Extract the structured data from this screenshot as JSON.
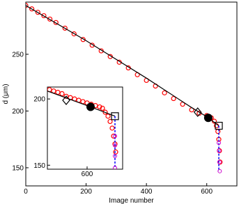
{
  "chart_data": [
    {
      "type": "scatter",
      "xlabel": "Image number",
      "ylabel": "d (μm)",
      "xlim": [
        0,
        700
      ],
      "ylim": [
        134,
        296
      ],
      "xticks": [
        0,
        200,
        400,
        600
      ],
      "yticks": [
        150,
        200,
        250
      ],
      "series": [
        {
          "style": "circle",
          "color": "#ff0000",
          "x": [
            0,
            20,
            40,
            60,
            80,
            100,
            130,
            160,
            190,
            220,
            250,
            280,
            310,
            340,
            370,
            400,
            430,
            460,
            490,
            520,
            550,
            575,
            600,
            615,
            625,
            632,
            637,
            640,
            642,
            644
          ],
          "values": [
            293,
            290,
            287,
            284,
            281,
            278,
            273,
            268,
            263,
            258,
            253,
            248,
            243,
            238,
            232,
            227,
            222,
            216,
            211,
            206,
            201,
            198,
            196,
            194,
            191,
            187,
            182,
            175,
            165,
            155
          ]
        },
        {
          "style": "line",
          "color": "#000000",
          "x": [
            0,
            200,
            400,
            550,
            600,
            640
          ],
          "values": [
            293,
            262,
            229,
            203,
            195,
            187
          ]
        },
        {
          "style": "dashed",
          "color": "#0000ff",
          "x": [
            640,
            640
          ],
          "values": [
            187,
            147
          ]
        },
        {
          "style": "ring",
          "color": "#cc00cc",
          "x": [
            640,
            641,
            642,
            643
          ],
          "values": [
            172,
            165,
            155,
            147
          ]
        },
        {
          "style": "diamond",
          "color": "#000000",
          "x": [
            570
          ],
          "values": [
            199
          ]
        },
        {
          "style": "dot",
          "color": "#000000",
          "x": [
            605
          ],
          "values": [
            194
          ]
        },
        {
          "style": "square",
          "color": "#000000",
          "x": [
            640
          ],
          "values": [
            187
          ]
        }
      ]
    },
    {
      "type": "scatter",
      "xlim": [
        543,
        651
      ],
      "ylim": [
        147,
        209
      ],
      "xticks": [
        600
      ],
      "yticks": [
        150,
        200
      ],
      "series": [
        {
          "style": "circle",
          "color": "#ff0000",
          "x": [
            546,
            552,
            558,
            564,
            570,
            576,
            582,
            588,
            594,
            600,
            606,
            612,
            618,
            622,
            626,
            630,
            633,
            636,
            638,
            640,
            641
          ],
          "values": [
            207,
            206,
            205,
            204,
            202,
            201,
            200,
            199,
            198,
            197,
            196,
            195,
            194,
            193,
            190,
            187,
            183,
            178,
            172,
            166,
            160
          ]
        },
        {
          "style": "line",
          "color": "#000000",
          "x": [
            543,
            600,
            640
          ],
          "values": [
            206,
            195,
            187
          ]
        },
        {
          "style": "dashed",
          "color": "#0000ff",
          "x": [
            640,
            640
          ],
          "values": [
            187,
            148
          ]
        },
        {
          "style": "ring",
          "color": "#cc00cc",
          "x": [
            640,
            640,
            640,
            640
          ],
          "values": [
            172,
            165,
            157,
            148
          ]
        },
        {
          "style": "diamond",
          "color": "#000000",
          "x": [
            570
          ],
          "values": [
            199
          ]
        },
        {
          "style": "dot",
          "color": "#000000",
          "x": [
            605
          ],
          "values": [
            194
          ]
        },
        {
          "style": "square",
          "color": "#000000",
          "x": [
            640
          ],
          "values": [
            187
          ]
        }
      ]
    }
  ]
}
